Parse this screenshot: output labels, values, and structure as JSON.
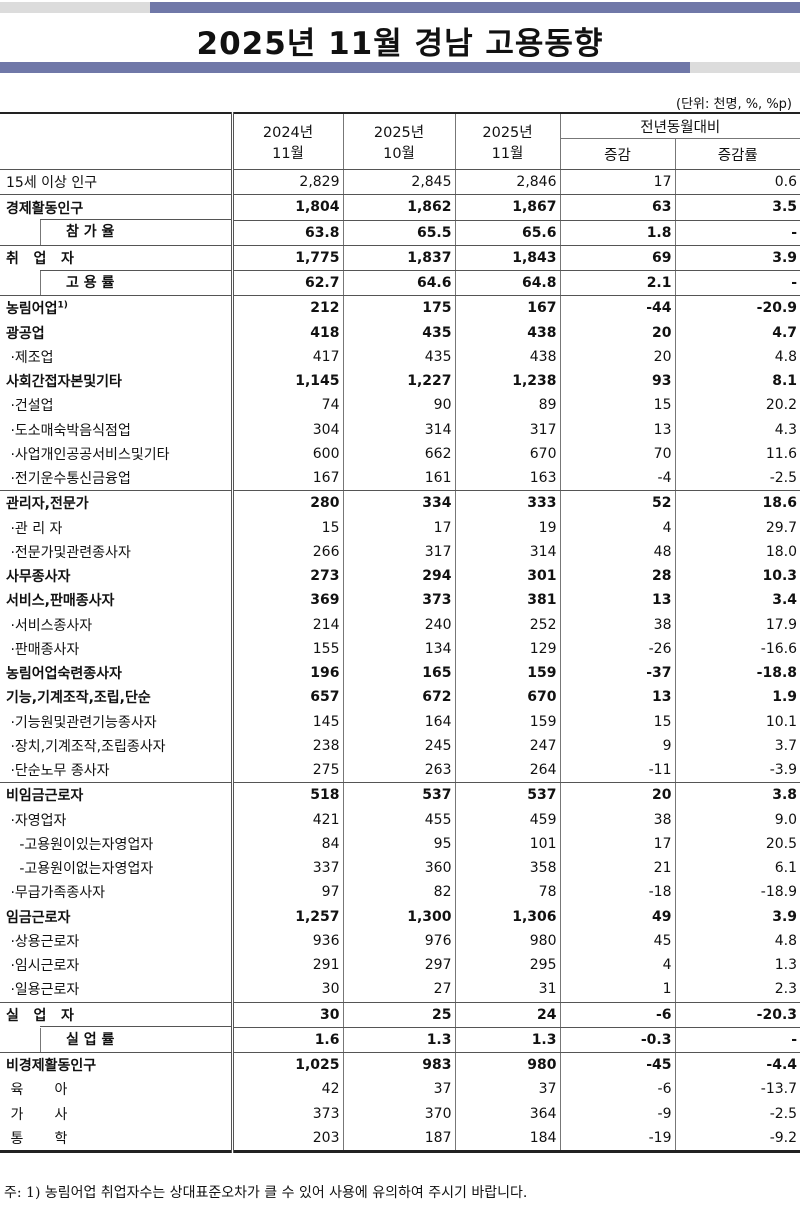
{
  "title": "2025년 11월 경남 고용동향",
  "unit": "(단위: 천명, %, %p)",
  "header": {
    "c1": [
      "2024년",
      "11월"
    ],
    "c2": [
      "2025년",
      "10월"
    ],
    "c3": [
      "2025년",
      "11월"
    ],
    "group": "전년동월대비",
    "c4": "증감",
    "c5": "증감률"
  },
  "colors": {
    "bar_blue": "#7078a8",
    "bar_gray": "#dcdcdc"
  },
  "rows": [
    {
      "label": "15세 이상 인구",
      "v": [
        "2,829",
        "2,845",
        "2,846",
        "17",
        "0.6"
      ]
    },
    {
      "label": "경제활동인구",
      "v": [
        "1,804",
        "1,862",
        "1,867",
        "63",
        "3.5"
      ],
      "bold": true
    },
    {
      "label": "참 가 율",
      "v": [
        "63.8",
        "65.5",
        "65.6",
        "1.8",
        "-"
      ],
      "bold": true,
      "sub": true
    },
    {
      "label": "취   업   자",
      "v": [
        "1,775",
        "1,837",
        "1,843",
        "69",
        "3.9"
      ],
      "bold": true
    },
    {
      "label": "고 용 률",
      "v": [
        "62.7",
        "64.6",
        "64.8",
        "2.1",
        "-"
      ],
      "bold": true,
      "sub": true
    },
    {
      "label": "농림어업",
      "sup": "1)",
      "v": [
        "212",
        "175",
        "167",
        "-44",
        "-20.9"
      ],
      "bold": true
    },
    {
      "label": "광공업",
      "v": [
        "418",
        "435",
        "438",
        "20",
        "4.7"
      ],
      "bold": true
    },
    {
      "label": " ·제조업",
      "v": [
        "417",
        "435",
        "438",
        "20",
        "4.8"
      ]
    },
    {
      "label": "사회간접자본및기타",
      "v": [
        "1,145",
        "1,227",
        "1,238",
        "93",
        "8.1"
      ],
      "bold": true
    },
    {
      "label": " ·건설업",
      "v": [
        "74",
        "90",
        "89",
        "15",
        "20.2"
      ]
    },
    {
      "label": " ·도소매숙박음식점업",
      "v": [
        "304",
        "314",
        "317",
        "13",
        "4.3"
      ]
    },
    {
      "label": " ·사업개인공공서비스및기타",
      "v": [
        "600",
        "662",
        "670",
        "70",
        "11.6"
      ]
    },
    {
      "label": " ·전기운수통신금융업",
      "v": [
        "167",
        "161",
        "163",
        "-4",
        "-2.5"
      ]
    },
    {
      "label": "관리자,전문가",
      "v": [
        "280",
        "334",
        "333",
        "52",
        "18.6"
      ],
      "bold": true
    },
    {
      "label": " ·관 리 자",
      "v": [
        "15",
        "17",
        "19",
        "4",
        "29.7"
      ]
    },
    {
      "label": " ·전문가및관련종사자",
      "v": [
        "266",
        "317",
        "314",
        "48",
        "18.0"
      ]
    },
    {
      "label": "사무종사자",
      "v": [
        "273",
        "294",
        "301",
        "28",
        "10.3"
      ],
      "bold": true
    },
    {
      "label": "서비스,판매종사자",
      "v": [
        "369",
        "373",
        "381",
        "13",
        "3.4"
      ],
      "bold": true
    },
    {
      "label": " ·서비스종사자",
      "v": [
        "214",
        "240",
        "252",
        "38",
        "17.9"
      ]
    },
    {
      "label": " ·판매종사자",
      "v": [
        "155",
        "134",
        "129",
        "-26",
        "-16.6"
      ]
    },
    {
      "label": "농림어업숙련종사자",
      "v": [
        "196",
        "165",
        "159",
        "-37",
        "-18.8"
      ],
      "bold": true
    },
    {
      "label": "기능,기계조작,조립,단순",
      "v": [
        "657",
        "672",
        "670",
        "13",
        "1.9"
      ],
      "bold": true
    },
    {
      "label": " ·기능원및관련기능종사자",
      "v": [
        "145",
        "164",
        "159",
        "15",
        "10.1"
      ]
    },
    {
      "label": " ·장치,기계조작,조립종사자",
      "v": [
        "238",
        "245",
        "247",
        "9",
        "3.7"
      ]
    },
    {
      "label": " ·단순노무 종사자",
      "v": [
        "275",
        "263",
        "264",
        "-11",
        "-3.9"
      ]
    },
    {
      "label": "비임금근로자",
      "v": [
        "518",
        "537",
        "537",
        "20",
        "3.8"
      ],
      "bold": true
    },
    {
      "label": " ·자영업자",
      "v": [
        "421",
        "455",
        "459",
        "38",
        "9.0"
      ]
    },
    {
      "label": "   -고용원이있는자영업자",
      "v": [
        "84",
        "95",
        "101",
        "17",
        "20.5"
      ]
    },
    {
      "label": "   -고용원이없는자영업자",
      "v": [
        "337",
        "360",
        "358",
        "21",
        "6.1"
      ]
    },
    {
      "label": " ·무급가족종사자",
      "v": [
        "97",
        "82",
        "78",
        "-18",
        "-18.9"
      ]
    },
    {
      "label": "임금근로자",
      "v": [
        "1,257",
        "1,300",
        "1,306",
        "49",
        "3.9"
      ],
      "bold": true
    },
    {
      "label": " ·상용근로자",
      "v": [
        "936",
        "976",
        "980",
        "45",
        "4.8"
      ]
    },
    {
      "label": " ·임시근로자",
      "v": [
        "291",
        "297",
        "295",
        "4",
        "1.3"
      ]
    },
    {
      "label": " ·일용근로자",
      "v": [
        "30",
        "27",
        "31",
        "1",
        "2.3"
      ]
    },
    {
      "label": "실   업   자",
      "v": [
        "30",
        "25",
        "24",
        "-6",
        "-20.3"
      ],
      "bold": true
    },
    {
      "label": "실 업 률",
      "v": [
        "1.6",
        "1.3",
        "1.3",
        "-0.3",
        "-"
      ],
      "bold": true,
      "sub": true
    },
    {
      "label": "비경제활동인구",
      "v": [
        "1,025",
        "983",
        "980",
        "-45",
        "-4.4"
      ],
      "bold": true
    },
    {
      "label": " 육       아",
      "v": [
        "42",
        "37",
        "37",
        "-6",
        "-13.7"
      ]
    },
    {
      "label": " 가       사",
      "v": [
        "373",
        "370",
        "364",
        "-9",
        "-2.5"
      ]
    },
    {
      "label": " 통       학",
      "v": [
        "203",
        "187",
        "184",
        "-19",
        "-9.2"
      ]
    }
  ],
  "footnote": "주: 1) 농림어업 취업자수는 상대표준오차가 클 수 있어 사용에 유의하여 주시기 바랍니다."
}
